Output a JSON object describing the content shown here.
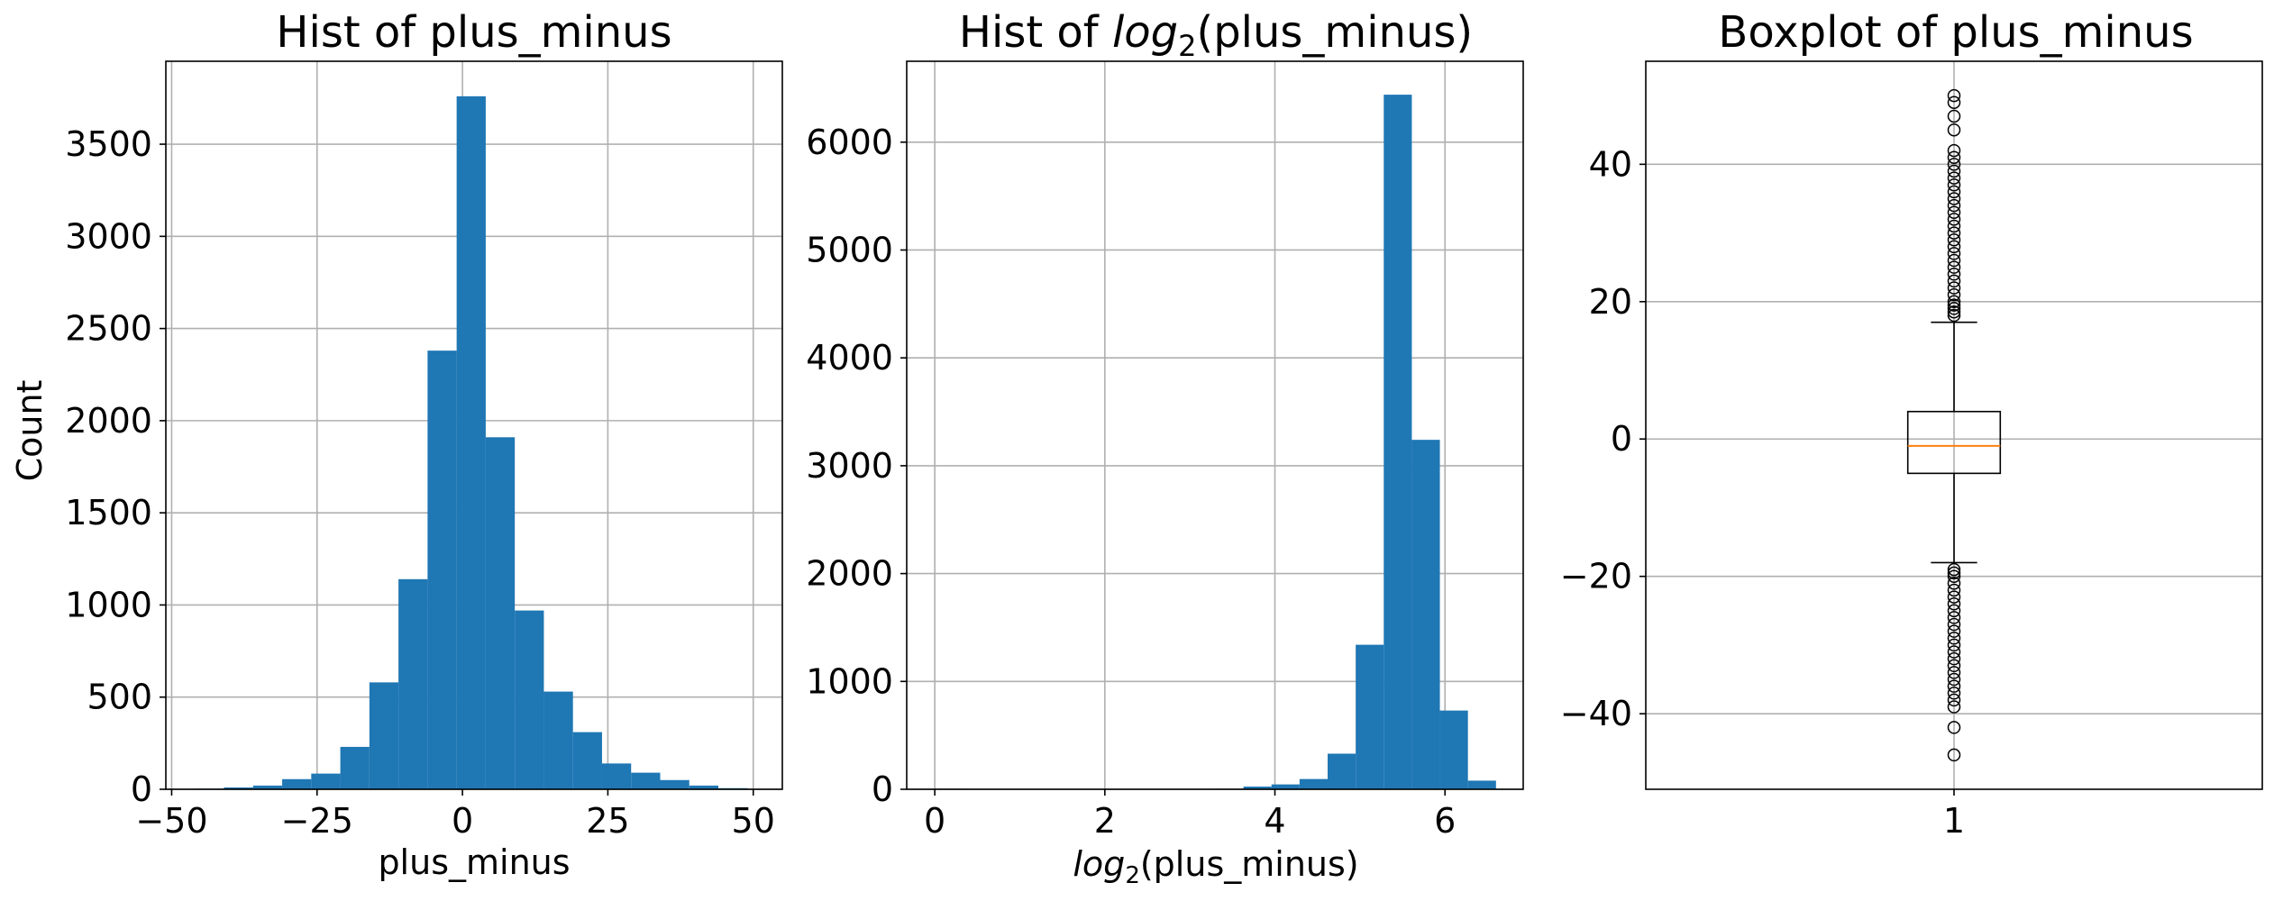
{
  "colors": {
    "bar": "#1f77b4",
    "median": "#ff7f0e",
    "grid": "#b0b0b0",
    "frame": "#000000"
  },
  "chart_data": [
    {
      "type": "bar",
      "title": "Hist of plus_minus",
      "xlabel": "plus_minus",
      "ylabel": "Count",
      "xlim": [
        -51,
        55
      ],
      "ylim": [
        0,
        3950
      ],
      "grid": true,
      "x_ticks": [
        -50,
        -25,
        0,
        25,
        50
      ],
      "x_tick_labels": [
        "−50",
        "−25",
        "0",
        "25",
        "50"
      ],
      "y_ticks": [
        0,
        500,
        1000,
        1500,
        2000,
        2500,
        3000,
        3500
      ],
      "y_tick_labels": [
        "0",
        "500",
        "1000",
        "1500",
        "2000",
        "2500",
        "3000",
        "3500"
      ],
      "bin_edges": [
        -46,
        -41,
        -36,
        -31,
        -26,
        -21,
        -16,
        -11,
        -6,
        -1,
        4,
        9,
        14,
        19,
        24,
        29,
        34,
        39,
        44,
        49
      ],
      "values": [
        3,
        10,
        20,
        55,
        85,
        230,
        580,
        1140,
        2380,
        3760,
        1910,
        970,
        530,
        310,
        140,
        90,
        50,
        20,
        6
      ]
    },
    {
      "type": "bar",
      "title_prefix": "Hist of ",
      "title_math": "log",
      "title_sub": "2",
      "title_suffix": "(plus_minus)",
      "xlabel_math": "log",
      "xlabel_sub": "2",
      "xlabel_suffix": "(plus_minus)",
      "xlim": [
        -0.33,
        6.92
      ],
      "ylim": [
        0,
        6750
      ],
      "grid": true,
      "x_ticks": [
        0,
        2,
        4,
        6
      ],
      "x_tick_labels": [
        "0",
        "2",
        "4",
        "6"
      ],
      "y_ticks": [
        0,
        1000,
        2000,
        3000,
        4000,
        5000,
        6000
      ],
      "y_tick_labels": [
        "0",
        "1000",
        "2000",
        "3000",
        "4000",
        "5000",
        "6000"
      ],
      "bin_edges": [
        0,
        0.33,
        0.66,
        0.99,
        1.32,
        1.65,
        1.98,
        2.31,
        2.64,
        2.97,
        3.3,
        3.63,
        3.96,
        4.29,
        4.62,
        4.95,
        5.28,
        5.61,
        5.94,
        6.27,
        6.6
      ],
      "values": [
        5,
        0,
        0,
        0,
        0,
        0,
        0,
        0,
        0,
        0,
        5,
        25,
        45,
        95,
        330,
        1340,
        6440,
        3240,
        730,
        80
      ]
    },
    {
      "type": "boxplot",
      "title": "Boxplot of plus_minus",
      "xlim": [
        0.5,
        1.5
      ],
      "ylim": [
        -51,
        55
      ],
      "grid": true,
      "x_ticks": [
        1
      ],
      "x_tick_labels": [
        "1"
      ],
      "y_ticks": [
        -40,
        -20,
        0,
        20,
        40
      ],
      "y_tick_labels": [
        "−40",
        "−20",
        "0",
        "20",
        "40"
      ],
      "position": 1,
      "q1": -5,
      "median": -1,
      "q3": 4,
      "whisker_low": -18,
      "whisker_high": 17,
      "fliers_high": [
        18,
        18.5,
        19,
        19.5,
        20,
        21,
        22,
        23,
        24,
        25,
        26,
        27,
        28,
        29,
        30,
        31,
        32,
        33,
        34,
        35,
        36,
        37,
        38,
        39,
        40,
        41,
        42,
        45,
        47,
        49,
        50
      ],
      "fliers_low": [
        -19,
        -19.5,
        -20,
        -21,
        -22,
        -23,
        -24,
        -25,
        -26,
        -27,
        -28,
        -29,
        -30,
        -31,
        -32,
        -33,
        -34,
        -35,
        -36,
        -37,
        -38,
        -39,
        -42,
        -46
      ]
    }
  ]
}
